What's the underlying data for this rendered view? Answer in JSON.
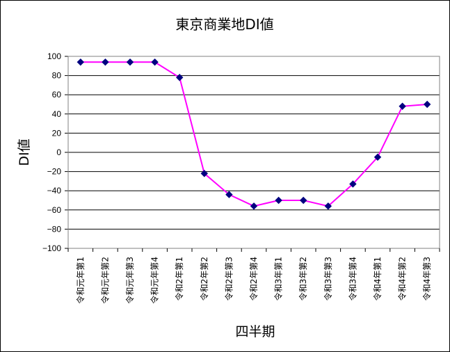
{
  "chart_data": {
    "type": "line",
    "title": "東京商業地DI値",
    "xlabel": "四半期",
    "ylabel": "DI値",
    "ylim": [
      -100,
      100
    ],
    "ytick_step": 20,
    "grid": true,
    "categories": [
      "令和元年第1",
      "令和元年第2",
      "令和元年第3",
      "令和元年第4",
      "令和2年第1",
      "令和2年第2",
      "令和2年第3",
      "令和2年第4",
      "令和3年第1",
      "令和3年第2",
      "令和3年第3",
      "令和3年第4",
      "令和4年第1",
      "令和4年第2",
      "令和4年第3"
    ],
    "values": [
      94,
      94,
      94,
      94,
      78,
      -22,
      -44,
      -56,
      -50,
      -50,
      -56,
      -33,
      -5,
      48,
      50
    ],
    "line_color": "#ff00ff",
    "marker_color": "#000080"
  }
}
